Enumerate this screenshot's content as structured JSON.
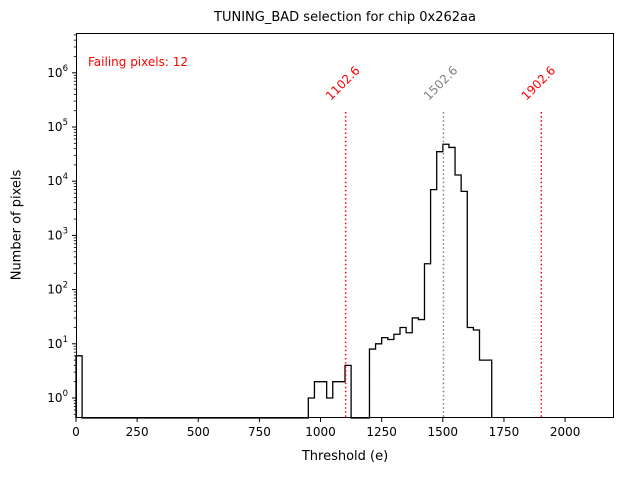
{
  "title": "TUNING_BAD selection for chip 0x262aa",
  "annotation": {
    "text": "Failing pixels: 12",
    "color": "#ff0000"
  },
  "chart_data": {
    "type": "bar",
    "subtype": "step-histogram",
    "title": "TUNING_BAD selection for chip 0x262aa",
    "xlabel": "Threshold (e)",
    "ylabel": "Number of pixels",
    "x_scale": "linear",
    "y_scale": "log",
    "xlim": [
      0,
      2200
    ],
    "ylim": [
      0.43,
      5500000
    ],
    "x_ticks": [
      0,
      250,
      500,
      750,
      1000,
      1250,
      1500,
      1750,
      2000
    ],
    "y_tick_exponents": [
      0,
      1,
      2,
      3,
      4,
      5,
      6
    ],
    "grid": false,
    "line_color": "#000000",
    "bin_width": 25,
    "bins": [
      [
        0,
        6
      ],
      [
        950,
        1
      ],
      [
        975,
        2
      ],
      [
        1000,
        2
      ],
      [
        1025,
        1
      ],
      [
        1050,
        2
      ],
      [
        1075,
        2
      ],
      [
        1100,
        4
      ],
      [
        1200,
        8
      ],
      [
        1225,
        10
      ],
      [
        1250,
        13
      ],
      [
        1275,
        12
      ],
      [
        1300,
        15
      ],
      [
        1325,
        20
      ],
      [
        1350,
        16
      ],
      [
        1375,
        30
      ],
      [
        1400,
        28
      ],
      [
        1425,
        300
      ],
      [
        1450,
        7000
      ],
      [
        1475,
        35000
      ],
      [
        1500,
        48000
      ],
      [
        1525,
        42000
      ],
      [
        1550,
        13000
      ],
      [
        1575,
        6500
      ],
      [
        1600,
        20
      ],
      [
        1625,
        18
      ],
      [
        1650,
        5
      ],
      [
        1675,
        5
      ]
    ],
    "vlines": [
      {
        "x": 1102.6,
        "label": "1102.6",
        "color": "#ff0000",
        "style": "dotted"
      },
      {
        "x": 1502.6,
        "label": "1502.6",
        "color": "#808080",
        "style": "dotted"
      },
      {
        "x": 1902.6,
        "label": "1902.6",
        "color": "#ff0000",
        "style": "dotted"
      }
    ]
  }
}
